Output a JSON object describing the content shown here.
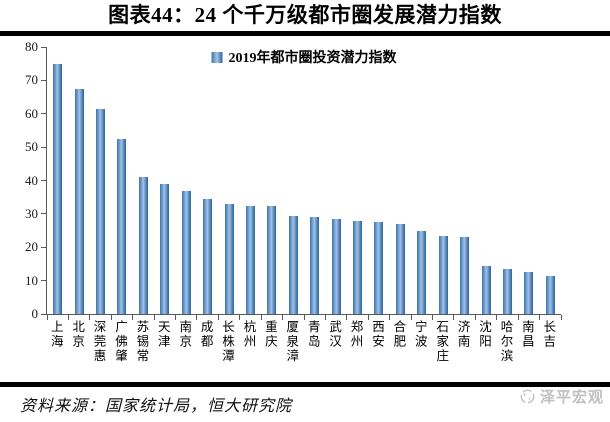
{
  "header": {
    "title": "图表44：24 个千万级都市圈发展潜力指数"
  },
  "chart_data": {
    "type": "bar",
    "title": "图表44：24 个千万级都市圈发展潜力指数",
    "legend": [
      "2019年都市圈投资潜力指数"
    ],
    "legend_position": "top-center",
    "categories": [
      "上海",
      "北京",
      "深莞惠",
      "广佛肇",
      "苏锡常",
      "天津",
      "南京",
      "成都",
      "长株潭",
      "杭州",
      "重庆",
      "厦泉漳",
      "青岛",
      "武汉",
      "郑州",
      "西安",
      "合肥",
      "宁波",
      "石家庄",
      "济南",
      "沈阳",
      "哈尔滨",
      "南昌",
      "长吉"
    ],
    "values": [
      75,
      67.5,
      61.5,
      52.5,
      41,
      39,
      37,
      34.5,
      33,
      32.5,
      32.5,
      29.5,
      29,
      28.5,
      28,
      27.5,
      27,
      25,
      23.5,
      23,
      14.5,
      13.5,
      12.5,
      11.5
    ],
    "xlabel": "",
    "ylabel": "",
    "ylim": [
      0,
      80
    ],
    "ytick_step": 10,
    "grid": false,
    "bar_color": "#4F81BD"
  },
  "footer": {
    "source": "资料来源：国家统计局，恒大研究院",
    "logo_text": "泽平宏观"
  },
  "colors": {
    "bar_light": "#A6C3E4",
    "bar_dark": "#2E639C",
    "rule": "#000000",
    "logo_gray": "#C0C0C0"
  }
}
